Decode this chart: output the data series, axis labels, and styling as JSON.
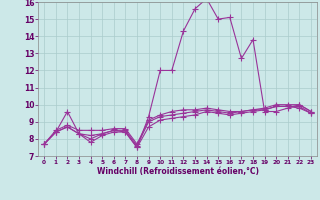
{
  "xlabel": "Windchill (Refroidissement éolien,°C)",
  "ylabel": "",
  "bg_color": "#cce8e8",
  "grid_color": "#aacccc",
  "line_color": "#993399",
  "xlim": [
    -0.5,
    23.5
  ],
  "ylim": [
    7,
    16
  ],
  "xticks": [
    0,
    1,
    2,
    3,
    4,
    5,
    6,
    7,
    8,
    9,
    10,
    11,
    12,
    13,
    14,
    15,
    16,
    17,
    18,
    19,
    20,
    21,
    22,
    23
  ],
  "yticks": [
    7,
    8,
    9,
    10,
    11,
    12,
    13,
    14,
    15,
    16
  ],
  "series": [
    [
      7.7,
      8.4,
      8.7,
      8.3,
      7.8,
      8.2,
      8.4,
      8.4,
      7.5,
      8.7,
      9.1,
      9.2,
      9.3,
      9.4,
      9.6,
      9.5,
      9.4,
      9.5,
      9.6,
      9.7,
      9.9,
      9.9,
      9.8,
      9.5
    ],
    [
      7.7,
      8.4,
      8.7,
      8.3,
      8.2,
      8.3,
      8.5,
      8.5,
      7.6,
      9.0,
      9.3,
      9.4,
      9.5,
      9.6,
      9.7,
      9.6,
      9.5,
      9.6,
      9.7,
      9.7,
      9.9,
      9.9,
      9.9,
      9.5
    ],
    [
      7.7,
      8.5,
      8.8,
      8.5,
      8.5,
      8.5,
      8.6,
      8.6,
      7.7,
      9.1,
      9.4,
      9.6,
      9.7,
      9.7,
      9.8,
      9.7,
      9.6,
      9.6,
      9.7,
      9.8,
      10.0,
      10.0,
      10.0,
      9.6
    ],
    [
      7.7,
      8.4,
      9.6,
      8.3,
      8.0,
      8.3,
      8.5,
      8.4,
      7.5,
      9.3,
      12.0,
      12.0,
      14.3,
      15.6,
      16.2,
      15.0,
      15.1,
      12.7,
      13.8,
      9.6,
      9.6,
      9.8,
      10.0,
      9.6
    ]
  ],
  "marker": "+",
  "markersize": 4,
  "linewidth": 0.8
}
